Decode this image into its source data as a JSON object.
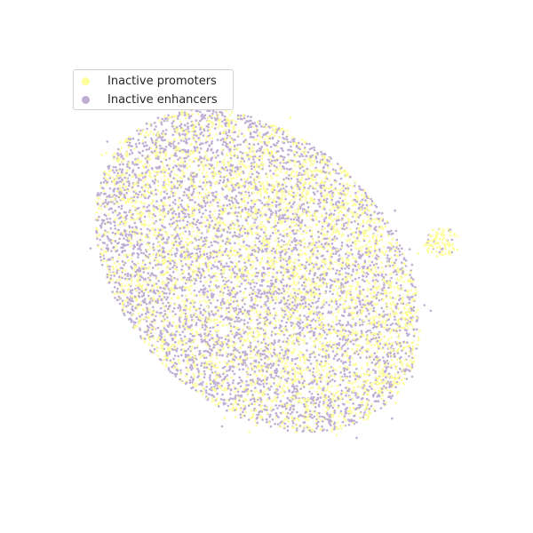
{
  "chart_data": {
    "type": "scatter",
    "title": "",
    "xlabel": "",
    "ylabel": "",
    "axes_visible": false,
    "grid": false,
    "legend_placement": "top-left",
    "point_count_per_series": "many thousands (dense UMAP-like embedding)",
    "series": [
      {
        "name": "Inactive promoters",
        "color": "#ffff99",
        "distribution": "spread across the whole cloud; concentrated in the center and right side, plus small lobes at the right edge"
      },
      {
        "name": "Inactive enhancers",
        "color": "#beaed4",
        "distribution": "spread across the whole cloud; densest in the lower-left region and along the top edge"
      }
    ]
  }
}
